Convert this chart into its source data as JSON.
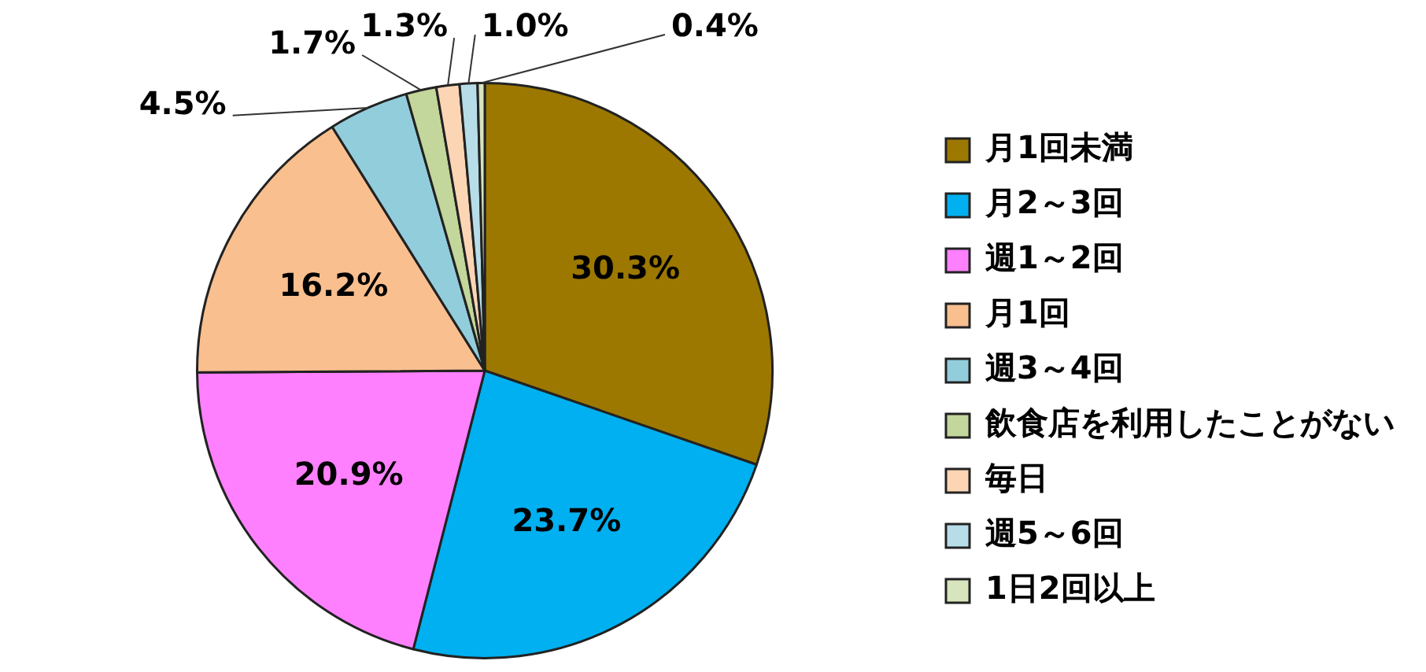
{
  "chart_data": {
    "type": "pie",
    "categories": [
      "月1回未満",
      "月2～3回",
      "週1～2回",
      "月1回",
      "週3～4回",
      "飲食店を利用したことがない",
      "毎日",
      "週5～6回",
      "1日2回以上"
    ],
    "values": [
      30.3,
      23.7,
      20.9,
      16.2,
      4.5,
      1.7,
      1.3,
      1.0,
      0.4
    ],
    "colors": [
      "#9c7800",
      "#00b0f0",
      "#ff80ff",
      "#f9bf8f",
      "#92cddc",
      "#c3d69b",
      "#fcd5b5",
      "#b7dee8",
      "#d7e4bd"
    ],
    "value_labels": [
      "30.3%",
      "23.7%",
      "20.9%",
      "16.2%",
      "4.5%",
      "1.7%",
      "1.3%",
      "1.0%",
      "0.4%"
    ],
    "legend": "right"
  }
}
